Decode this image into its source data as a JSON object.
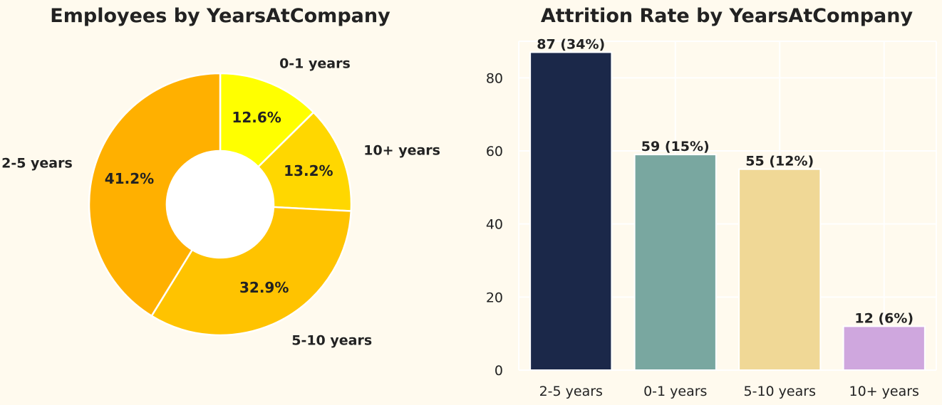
{
  "chart_data": [
    {
      "type": "pie",
      "title": "Employees by YearsAtCompany",
      "donut": true,
      "slices": [
        {
          "label": "0-1 years",
          "value": 12.6,
          "pct_label": "12.6%",
          "color": "#ffff00"
        },
        {
          "label": "10+ years",
          "value": 13.2,
          "pct_label": "13.2%",
          "color": "#ffd700"
        },
        {
          "label": "5-10 years",
          "value": 32.9,
          "pct_label": "32.9%",
          "color": "#ffc300"
        },
        {
          "label": "2-5 years",
          "value": 41.2,
          "pct_label": "41.2%",
          "color": "#ffb000"
        }
      ]
    },
    {
      "type": "bar",
      "title": "Attrition Rate by YearsAtCompany",
      "categories": [
        "2-5 years",
        "0-1 years",
        "5-10 years",
        "10+ years"
      ],
      "values": [
        87,
        59,
        55,
        12
      ],
      "data_labels": [
        "87 (34%)",
        "59 (15%)",
        "55 (12%)",
        "12 (6%)"
      ],
      "colors": [
        "#1b2849",
        "#79a7a0",
        "#f0d896",
        "#cfa7de"
      ],
      "ylim": [
        0,
        90
      ],
      "yticks": [
        0,
        20,
        40,
        60,
        80
      ],
      "grid": true,
      "xlabel": "",
      "ylabel": ""
    }
  ]
}
